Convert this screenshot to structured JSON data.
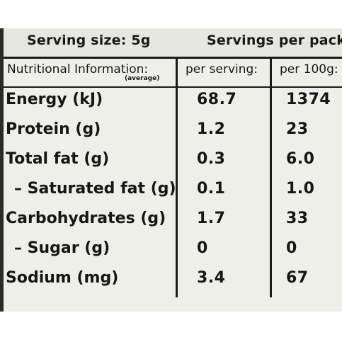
{
  "header": {
    "serving_size": "Serving size: 5g",
    "servings_per_pack": "Servings per pack:"
  },
  "table": {
    "columns": [
      "Nutritional Information:",
      "per serving:",
      "per 100g:"
    ],
    "average_note": "(average)",
    "rows": [
      {
        "label": "Energy (kJ)",
        "per_serving": "68.7",
        "per_100g": "1374"
      },
      {
        "label": "Protein (g)",
        "per_serving": "1.2",
        "per_100g": "23"
      },
      {
        "label": "Total fat (g)",
        "per_serving": "0.3",
        "per_100g": "6.0"
      },
      {
        "label": "– Saturated fat (g)",
        "per_serving": "0.1",
        "per_100g": "1.0"
      },
      {
        "label": "Carbohydrates (g)",
        "per_serving": "1.7",
        "per_100g": "33"
      },
      {
        "label": "– Sugar (g)",
        "per_serving": "0",
        "per_100g": "0"
      },
      {
        "label": "Sodium (mg)",
        "per_serving": "3.4",
        "per_100g": "67"
      }
    ]
  }
}
